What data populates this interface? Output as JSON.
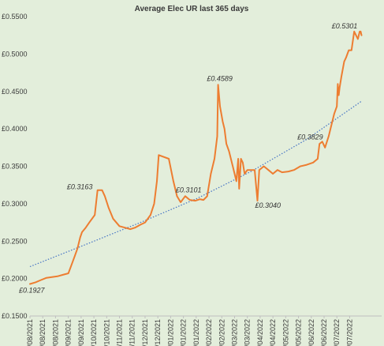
{
  "chart_data": {
    "type": "line",
    "title": "Average Elec UR last 365 days",
    "xlabel": "",
    "ylabel": "",
    "ylim": [
      0.15,
      0.55
    ],
    "y_ticks": [
      0.15,
      0.2,
      0.25,
      0.3,
      0.35,
      0.4,
      0.45,
      0.5,
      0.55
    ],
    "y_tick_labels": [
      "£0.1500",
      "£0.2000",
      "£0.2500",
      "£0.3000",
      "£0.3500",
      "£0.4000",
      "£0.4500",
      "£0.5000",
      "£0.5500"
    ],
    "x_range": [
      "2021-08-02",
      "2022-08-22"
    ],
    "x_tick_labels": [
      "02/08/2021",
      "16/08/2021",
      "30/08/2021",
      "13/09/2021",
      "27/09/2021",
      "11/10/2021",
      "25/10/2021",
      "08/11/2021",
      "22/11/2021",
      "06/12/2021",
      "20/12/2021",
      "03/01/2022",
      "17/01/2022",
      "31/01/2022",
      "14/02/2022",
      "28/02/2022",
      "14/03/2022",
      "28/03/2022",
      "11/04/2022",
      "25/04/2022",
      "09/05/2022",
      "23/05/2022",
      "06/06/2022",
      "20/06/2022",
      "04/07/2022",
      "18/07/2022"
    ],
    "grid": false,
    "legend": "none",
    "series": [
      {
        "color": "#ed7d31",
        "x": [
          "2021-08-02",
          "2021-08-08",
          "2021-08-14",
          "2021-08-20",
          "2021-08-26",
          "2021-09-01",
          "2021-09-07",
          "2021-09-13",
          "2021-09-17",
          "2021-09-20",
          "2021-09-23",
          "2021-09-26",
          "2021-09-28",
          "2021-10-02",
          "2021-10-06",
          "2021-10-12",
          "2021-10-15",
          "2021-10-20",
          "2021-10-23",
          "2021-10-27",
          "2021-11-01",
          "2021-11-08",
          "2021-11-14",
          "2021-11-20",
          "2021-11-25",
          "2021-12-01",
          "2021-12-06",
          "2021-12-12",
          "2021-12-16",
          "2021-12-19",
          "2021-12-21",
          "2022-01-01",
          "2022-01-06",
          "2022-01-10",
          "2022-01-14",
          "2022-01-19",
          "2022-01-24",
          "2022-01-30",
          "2022-02-04",
          "2022-02-08",
          "2022-02-12",
          "2022-02-16",
          "2022-02-20",
          "2022-02-23",
          "2022-02-24",
          "2022-02-26",
          "2022-03-01",
          "2022-03-03",
          "2022-03-05",
          "2022-03-08",
          "2022-03-12",
          "2022-03-16",
          "2022-03-18",
          "2022-03-19",
          "2022-03-21",
          "2022-03-23",
          "2022-03-25",
          "2022-03-28",
          "2022-04-01",
          "2022-04-05",
          "2022-04-08",
          "2022-04-10",
          "2022-04-15",
          "2022-04-20",
          "2022-04-25",
          "2022-04-30",
          "2022-05-05",
          "2022-05-12",
          "2022-05-18",
          "2022-05-25",
          "2022-06-01",
          "2022-06-08",
          "2022-06-13",
          "2022-06-15",
          "2022-06-18",
          "2022-06-21",
          "2022-06-25",
          "2022-06-28",
          "2022-07-01",
          "2022-07-04",
          "2022-07-05",
          "2022-07-06",
          "2022-07-07",
          "2022-07-09",
          "2022-07-12",
          "2022-07-14",
          "2022-07-17",
          "2022-07-20",
          "2022-07-23",
          "2022-07-27",
          "2022-07-28",
          "2022-07-29",
          "2022-07-30",
          "2022-07-31"
        ],
        "y": [
          0.1927,
          0.195,
          0.198,
          0.201,
          0.202,
          0.203,
          0.205,
          0.207,
          0.22,
          0.23,
          0.24,
          0.255,
          0.262,
          0.268,
          0.275,
          0.285,
          0.318,
          0.318,
          0.31,
          0.295,
          0.28,
          0.27,
          0.268,
          0.266,
          0.268,
          0.272,
          0.275,
          0.285,
          0.3,
          0.33,
          0.365,
          0.36,
          0.33,
          0.31,
          0.302,
          0.3101,
          0.305,
          0.304,
          0.306,
          0.305,
          0.31,
          0.34,
          0.36,
          0.39,
          0.4589,
          0.43,
          0.41,
          0.4,
          0.38,
          0.37,
          0.35,
          0.33,
          0.36,
          0.32,
          0.36,
          0.355,
          0.34,
          0.345,
          0.345,
          0.345,
          0.304,
          0.345,
          0.35,
          0.345,
          0.34,
          0.345,
          0.342,
          0.343,
          0.345,
          0.35,
          0.352,
          0.355,
          0.36,
          0.38,
          0.3829,
          0.375,
          0.39,
          0.405,
          0.42,
          0.43,
          0.46,
          0.445,
          0.455,
          0.47,
          0.49,
          0.495,
          0.505,
          0.505,
          0.5301,
          0.52,
          0.525,
          0.53,
          0.5301,
          0.525
        ]
      }
    ],
    "trendline": {
      "style": "dotted",
      "color": "#4472c4",
      "x": [
        "2021-08-02",
        "2021-10-01",
        "2021-12-01",
        "2022-02-01",
        "2022-04-01",
        "2022-06-01",
        "2022-07-31"
      ],
      "y": [
        0.216,
        0.245,
        0.275,
        0.307,
        0.343,
        0.386,
        0.437
      ]
    },
    "annotations": [
      {
        "text": "£0.1927",
        "x": "2021-08-02",
        "y": 0.1927
      },
      {
        "text": "£0.3163",
        "x": "2021-10-13",
        "y": 0.3163
      },
      {
        "text": "£0.3101",
        "x": "2022-01-19",
        "y": 0.3101
      },
      {
        "text": "£0.4589",
        "x": "2022-02-24",
        "y": 0.4589
      },
      {
        "text": "£0.3040",
        "x": "2022-04-08",
        "y": 0.304
      },
      {
        "text": "£0.3829",
        "x": "2022-06-18",
        "y": 0.3829
      },
      {
        "text": "£0.5301",
        "x": "2022-07-23",
        "y": 0.5301
      }
    ]
  }
}
